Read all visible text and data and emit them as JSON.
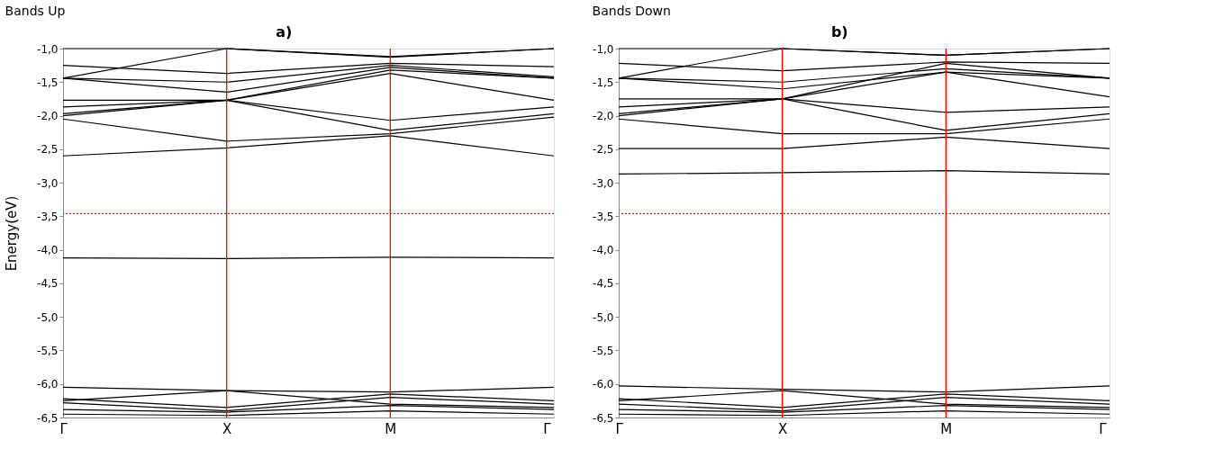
{
  "chart_data": [
    {
      "type": "line",
      "title": "Bands Up",
      "ylabel": "Energy(eV)",
      "annotations": [
        "a)"
      ],
      "categories": [
        "Γ",
        "X",
        "M",
        "Γ"
      ],
      "ylim": [
        -6.5,
        -1.0
      ],
      "yticks": [
        {
          "value": -1.0,
          "label": "-1,0"
        },
        {
          "value": -1.5,
          "label": "-1,5"
        },
        {
          "value": -2.0,
          "label": "-2,0"
        },
        {
          "value": -2.5,
          "label": "-2,5"
        },
        {
          "value": -3.0,
          "label": "-3,0"
        },
        {
          "value": -3.5,
          "label": "-3,5"
        },
        {
          "value": -4.0,
          "label": "-4,0"
        },
        {
          "value": -4.5,
          "label": "-4,5"
        },
        {
          "value": -5.0,
          "label": "-5,0"
        },
        {
          "value": -5.5,
          "label": "-5,5"
        },
        {
          "value": -6.0,
          "label": "-6,0"
        },
        {
          "value": -6.5,
          "label": "-6,5"
        }
      ],
      "grid": false,
      "legend": false,
      "marker": "none",
      "line_style": "solid",
      "ref_lines": [
        {
          "axis": "x",
          "value": "X",
          "color": "#ff0000",
          "line_style": "solid"
        },
        {
          "axis": "x",
          "value": "M",
          "color": "#ff0000",
          "line_style": "solid"
        },
        {
          "axis": "y",
          "value": -3.46,
          "color": "#ff0000",
          "line_style": "dotted"
        }
      ],
      "series": [
        {
          "color": "#000000",
          "values": [
            -1.0,
            -1.0,
            -1.13,
            -1.0
          ]
        },
        {
          "color": "#000000",
          "values": [
            -1.44,
            -1.0,
            -1.12,
            -1.0
          ]
        },
        {
          "color": "#000000",
          "values": [
            -1.25,
            -1.37,
            -1.22,
            -1.27
          ]
        },
        {
          "color": "#000000",
          "values": [
            -1.44,
            -1.5,
            -1.25,
            -1.42
          ]
        },
        {
          "color": "#000000",
          "values": [
            -1.44,
            -1.65,
            -1.28,
            -1.44
          ]
        },
        {
          "color": "#000000",
          "values": [
            -1.77,
            -1.77,
            -1.32,
            -1.44
          ]
        },
        {
          "color": "#000000",
          "values": [
            -1.87,
            -1.77,
            -1.37,
            -1.77
          ]
        },
        {
          "color": "#000000",
          "values": [
            -2.0,
            -1.77,
            -2.07,
            -1.87
          ]
        },
        {
          "color": "#000000",
          "values": [
            -1.97,
            -1.77,
            -2.22,
            -1.97
          ]
        },
        {
          "color": "#000000",
          "values": [
            -2.05,
            -2.38,
            -2.27,
            -2.02
          ]
        },
        {
          "color": "#000000",
          "values": [
            -2.6,
            -2.48,
            -2.3,
            -2.6
          ]
        },
        {
          "color": "#000000",
          "values": [
            -4.12,
            -4.13,
            -4.11,
            -4.12
          ]
        },
        {
          "color": "#000000",
          "values": [
            -6.05,
            -6.1,
            -6.12,
            -6.05
          ]
        },
        {
          "color": "#000000",
          "values": [
            -6.22,
            -6.35,
            -6.15,
            -6.25
          ]
        },
        {
          "color": "#000000",
          "values": [
            -6.28,
            -6.4,
            -6.2,
            -6.3
          ]
        },
        {
          "color": "#000000",
          "values": [
            -6.38,
            -6.42,
            -6.32,
            -6.38
          ]
        },
        {
          "color": "#000000",
          "values": [
            -6.45,
            -6.47,
            -6.4,
            -6.45
          ]
        },
        {
          "color": "#000000",
          "values": [
            -6.25,
            -6.1,
            -6.3,
            -6.35
          ]
        }
      ]
    },
    {
      "type": "line",
      "title": "Bands Down",
      "annotations": [
        "b)"
      ],
      "categories": [
        "Γ",
        "X",
        "M",
        "Γ"
      ],
      "ylim": [
        -6.5,
        -1.0
      ],
      "yticks": [
        {
          "value": -1.0,
          "label": "-1,0"
        },
        {
          "value": -1.5,
          "label": "-1,5"
        },
        {
          "value": -2.0,
          "label": "-2,0"
        },
        {
          "value": -2.5,
          "label": "-2,5"
        },
        {
          "value": -3.0,
          "label": "-3,0"
        },
        {
          "value": -3.5,
          "label": "-3,5"
        },
        {
          "value": -4.0,
          "label": "-4,0"
        },
        {
          "value": -4.5,
          "label": "-4,5"
        },
        {
          "value": -5.0,
          "label": "-5,0"
        },
        {
          "value": -5.5,
          "label": "-5,5"
        },
        {
          "value": -6.0,
          "label": "-6,0"
        },
        {
          "value": -6.5,
          "label": "-6,5"
        }
      ],
      "grid": false,
      "legend": false,
      "marker": "none",
      "line_style": "solid",
      "ref_lines": [
        {
          "axis": "x",
          "value": "X",
          "color": "#ff0000",
          "line_style": "solid"
        },
        {
          "axis": "x",
          "value": "M",
          "color": "#ff0000",
          "line_style": "solid"
        },
        {
          "axis": "y",
          "value": -3.46,
          "color": "#ff0000",
          "line_style": "dotted"
        }
      ],
      "series": [
        {
          "color": "#000000",
          "values": [
            -1.0,
            -1.0,
            -1.1,
            -1.0
          ]
        },
        {
          "color": "#000000",
          "values": [
            -1.44,
            -1.0,
            -1.1,
            -1.0
          ]
        },
        {
          "color": "#000000",
          "values": [
            -1.22,
            -1.33,
            -1.2,
            -1.22
          ]
        },
        {
          "color": "#000000",
          "values": [
            -1.44,
            -1.5,
            -1.3,
            -1.44
          ]
        },
        {
          "color": "#000000",
          "values": [
            -1.44,
            -1.6,
            -1.35,
            -1.44
          ]
        },
        {
          "color": "#000000",
          "values": [
            -1.75,
            -1.75,
            -1.22,
            -1.44
          ]
        },
        {
          "color": "#000000",
          "values": [
            -1.87,
            -1.75,
            -1.35,
            -1.72
          ]
        },
        {
          "color": "#000000",
          "values": [
            -2.0,
            -1.75,
            -1.95,
            -1.87
          ]
        },
        {
          "color": "#000000",
          "values": [
            -1.97,
            -1.75,
            -2.22,
            -1.97
          ]
        },
        {
          "color": "#000000",
          "values": [
            -2.05,
            -2.27,
            -2.27,
            -2.05
          ]
        },
        {
          "color": "#000000",
          "values": [
            -2.49,
            -2.49,
            -2.32,
            -2.49
          ]
        },
        {
          "color": "#000000",
          "values": [
            -2.87,
            -2.85,
            -2.82,
            -2.87
          ]
        },
        {
          "color": "#000000",
          "values": [
            -6.03,
            -6.08,
            -6.12,
            -6.03
          ]
        },
        {
          "color": "#000000",
          "values": [
            -6.22,
            -6.35,
            -6.15,
            -6.25
          ]
        },
        {
          "color": "#000000",
          "values": [
            -6.3,
            -6.4,
            -6.2,
            -6.3
          ]
        },
        {
          "color": "#000000",
          "values": [
            -6.38,
            -6.42,
            -6.32,
            -6.38
          ]
        },
        {
          "color": "#000000",
          "values": [
            -6.45,
            -6.47,
            -6.4,
            -6.45
          ]
        },
        {
          "color": "#000000",
          "values": [
            -6.25,
            -6.1,
            -6.3,
            -6.35
          ]
        }
      ]
    }
  ]
}
